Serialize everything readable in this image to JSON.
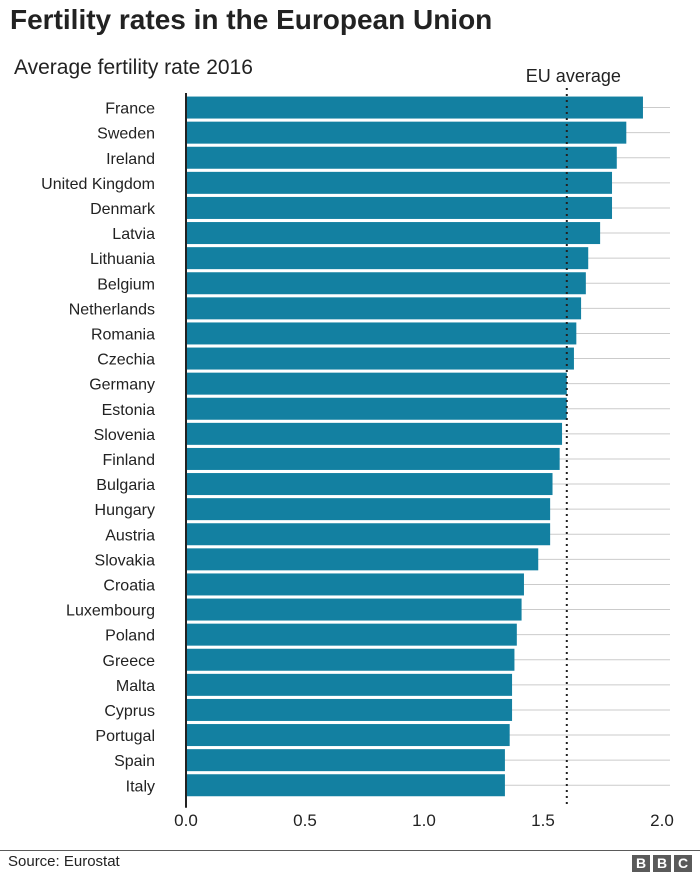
{
  "header": {
    "title": "Fertility rates in the European Union",
    "subtitle": "Average fertility rate 2016"
  },
  "footer": {
    "source": "Source: Eurostat",
    "logo": [
      "B",
      "B",
      "C"
    ]
  },
  "colors": {
    "bar": "#1380A1",
    "grid": "#cbcbcb",
    "axis": "#222222",
    "text": "#222222"
  },
  "chart_data": {
    "type": "bar",
    "orientation": "horizontal",
    "categories": [
      "France",
      "Sweden",
      "Ireland",
      "United Kingdom",
      "Denmark",
      "Latvia",
      "Lithuania",
      "Belgium",
      "Netherlands",
      "Romania",
      "Czechia",
      "Germany",
      "Estonia",
      "Slovenia",
      "Finland",
      "Bulgaria",
      "Hungary",
      "Austria",
      "Slovakia",
      "Croatia",
      "Luxembourg",
      "Poland",
      "Greece",
      "Malta",
      "Cyprus",
      "Portugal",
      "Spain",
      "Italy"
    ],
    "values": [
      1.92,
      1.85,
      1.81,
      1.79,
      1.79,
      1.74,
      1.69,
      1.68,
      1.66,
      1.64,
      1.63,
      1.6,
      1.6,
      1.58,
      1.57,
      1.54,
      1.53,
      1.53,
      1.48,
      1.42,
      1.41,
      1.39,
      1.38,
      1.37,
      1.37,
      1.36,
      1.34,
      1.34
    ],
    "xlim": [
      0,
      2.0
    ],
    "xticks": [
      0.0,
      0.5,
      1.0,
      1.5,
      2.0
    ],
    "xtick_labels": [
      "0.0",
      "0.5",
      "1.0",
      "1.5",
      "2.0"
    ],
    "reference_line": {
      "label": "EU average",
      "value": 1.6,
      "style": "dotted"
    },
    "grid": "horizontal"
  }
}
